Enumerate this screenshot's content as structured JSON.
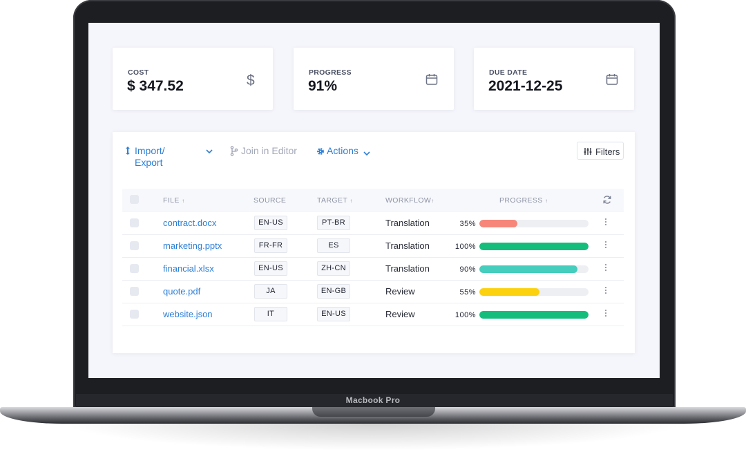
{
  "device": {
    "brand_label": "Macbook Pro"
  },
  "cards": [
    {
      "label": "COST",
      "value": "$ 347.52",
      "icon": "dollar-icon"
    },
    {
      "label": "PROGRESS",
      "value": "91%",
      "icon": "calendar-icon"
    },
    {
      "label": "DUE DATE",
      "value": "2021-12-25",
      "icon": "calendar-icon"
    }
  ],
  "toolbar": {
    "import_export_line1": "Import/",
    "import_export_line2": "Export",
    "join_editor": "Join in Editor",
    "actions": "Actions",
    "filters": "Filters"
  },
  "table": {
    "columns": {
      "file": "FILE",
      "source": "SOURCE",
      "target": "TARGET",
      "workflow": "WORKFLOW",
      "progress": "PROGRESS"
    },
    "rows": [
      {
        "file": "contract.docx",
        "source": "EN-US",
        "target": "PT-BR",
        "workflow": "Translation",
        "progress_label": "35%",
        "progress": 35,
        "color": "#f7867a"
      },
      {
        "file": "marketing.pptx",
        "source": "FR-FR",
        "target": "ES",
        "workflow": "Translation",
        "progress_label": "100%",
        "progress": 100,
        "color": "#15bd7c"
      },
      {
        "file": "financial.xlsx",
        "source": "EN-US",
        "target": "ZH-CN",
        "workflow": "Translation",
        "progress_label": "90%",
        "progress": 90,
        "color": "#45cdbd"
      },
      {
        "file": "quote.pdf",
        "source": "JA",
        "target": "EN-GB",
        "workflow": "Review",
        "progress_label": "55%",
        "progress": 55,
        "color": "#fcd10d"
      },
      {
        "file": "website.json",
        "source": "IT",
        "target": "EN-US",
        "workflow": "Review",
        "progress_label": "100%",
        "progress": 100,
        "color": "#15bd7c"
      }
    ]
  }
}
